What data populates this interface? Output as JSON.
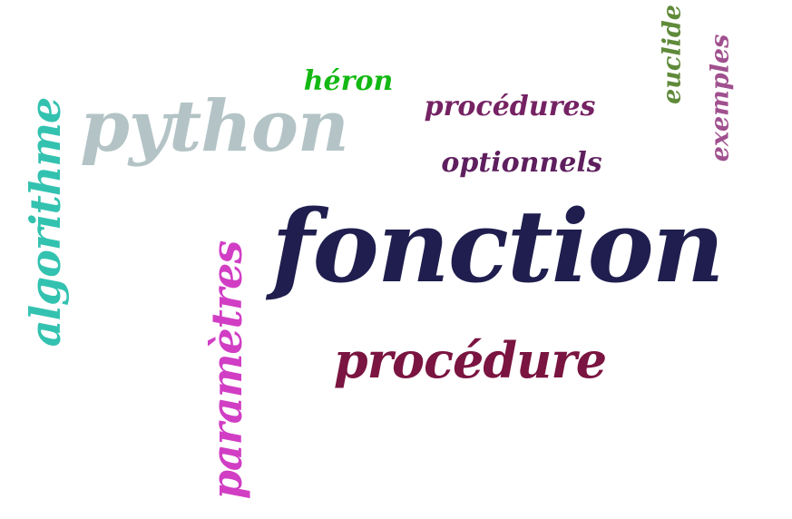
{
  "cloud": {
    "background": "#ffffff",
    "words": {
      "fonction": {
        "text": "fonction",
        "color": "#1f1e4e"
      },
      "python": {
        "text": "python",
        "color": "#b4c4c6"
      },
      "procedure": {
        "text": "procédure",
        "color": "#7a1440"
      },
      "algorithme": {
        "text": "algorithme",
        "color": "#33c2b0"
      },
      "parametres": {
        "text": "paramètres",
        "color": "#d13ec4"
      },
      "procedures": {
        "text": "procédures",
        "color": "#752263"
      },
      "optionnels": {
        "text": "optionnels",
        "color": "#5e1f5e"
      },
      "heron": {
        "text": "héron",
        "color": "#13b813"
      },
      "euclide": {
        "text": "euclide",
        "color": "#5f8a3a"
      },
      "exemples": {
        "text": "exemples",
        "color": "#a0508e"
      }
    }
  }
}
